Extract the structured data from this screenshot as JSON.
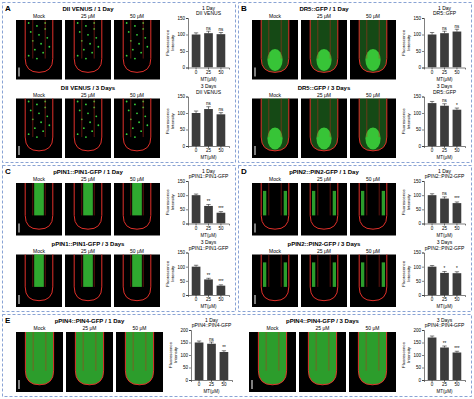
{
  "panels": [
    {
      "letter": "A",
      "rows": [
        {
          "heading": "DII VENUS / 1 Day",
          "columns": [
            "Mock",
            "25 μM",
            "50 μM"
          ]
        },
        {
          "heading": "DII VENUS / 3 Days",
          "columns": [
            "Mock",
            "25 μM",
            "50 μM"
          ]
        }
      ]
    },
    {
      "letter": "B",
      "rows": [
        {
          "heading": "DR5::GFP / 1 Day",
          "columns": [
            "Mock",
            "25 μM",
            "50 μM"
          ]
        },
        {
          "heading": "DR5::GFP / 3 Days",
          "columns": [
            "Mock",
            "25 μM",
            "50 μM"
          ]
        }
      ]
    },
    {
      "letter": "C",
      "rows": [
        {
          "heading": "pPIN1::PIN1-GFP / 1 Day",
          "columns": [
            "Mock",
            "25 μM",
            "50 μM"
          ]
        },
        {
          "heading": "pPIN1::PIN1-GFP / 3 Days",
          "columns": [
            "Mock",
            "25 μM",
            "50 μM"
          ]
        }
      ]
    },
    {
      "letter": "D",
      "rows": [
        {
          "heading": "pPIN2::PIN2-GFP / 1 Day",
          "columns": [
            "Mock",
            "25 μM",
            "50 μM"
          ]
        },
        {
          "heading": "pPIN2::PIN2-GFP / 3 Days",
          "columns": [
            "Mock",
            "25 μM",
            "50 μM"
          ]
        }
      ]
    },
    {
      "letter": "E",
      "rows": [
        {
          "heading": "pPIN4::PIN4-GFP / 1 Day",
          "columns": [
            "Mock",
            "25 μM",
            "50 μM"
          ]
        },
        {
          "heading": "pPIN4::PIN4-GFP / 3 Days",
          "columns": [
            "Mock",
            "25 μM",
            "50 μM"
          ]
        }
      ]
    }
  ],
  "chart_data": [
    {
      "type": "bar",
      "title": "1 Day",
      "subtitle": "DII VENUS",
      "xlabel": "MT(μM)",
      "ylabel": "Fluorescence Intensity",
      "categories": [
        "0",
        "25",
        "50"
      ],
      "values": [
        100,
        104,
        101
      ],
      "errors": [
        5,
        6,
        5
      ],
      "annotations": [
        null,
        "ns",
        "ns"
      ],
      "color": "#3c3c3c",
      "ylim": [
        0,
        150
      ],
      "yticks": [
        0,
        50,
        100,
        150
      ]
    },
    {
      "type": "bar",
      "title": "3 Days",
      "subtitle": "DII VENUS",
      "xlabel": "MT(μM)",
      "ylabel": "Fluorescence Intensity",
      "categories": [
        "0",
        "25",
        "50"
      ],
      "values": [
        100,
        112,
        96
      ],
      "errors": [
        6,
        7,
        5
      ],
      "annotations": [
        null,
        "ns",
        "ns"
      ],
      "color": "#3c3c3c",
      "ylim": [
        0,
        150
      ],
      "yticks": [
        0,
        50,
        100,
        150
      ]
    },
    {
      "type": "bar",
      "title": "1 Day",
      "subtitle": "DR5::GFP",
      "xlabel": "MT(μM)",
      "ylabel": "Fluorescence Intensity",
      "categories": [
        "0",
        "25",
        "50"
      ],
      "values": [
        100,
        104,
        109
      ],
      "errors": [
        6,
        6,
        7
      ],
      "annotations": [
        null,
        "ns",
        "ns"
      ],
      "color": "#3c3c3c",
      "ylim": [
        0,
        150
      ],
      "yticks": [
        0,
        50,
        100,
        150
      ]
    },
    {
      "type": "bar",
      "title": "3 Days",
      "subtitle": "DR5::GFP",
      "xlabel": "MT(μM)",
      "ylabel": "Fluorescence Intensity",
      "categories": [
        "0",
        "25",
        "50"
      ],
      "values": [
        130,
        122,
        110
      ],
      "errors": [
        5,
        6,
        5
      ],
      "annotations": [
        null,
        "ns",
        "*"
      ],
      "color": "#3c3c3c",
      "ylim": [
        0,
        150
      ],
      "yticks": [
        0,
        50,
        100,
        150
      ]
    },
    {
      "type": "bar",
      "title": "1 Day",
      "subtitle": "pPIN1::PIN1-GFP",
      "xlabel": "MT(μM)",
      "ylabel": "Fluorescence Intensity",
      "categories": [
        "0",
        "25",
        "50"
      ],
      "values": [
        100,
        62,
        38
      ],
      "errors": [
        4,
        5,
        4
      ],
      "annotations": [
        null,
        "**",
        "***"
      ],
      "color": "#3c3c3c",
      "ylim": [
        0,
        150
      ],
      "yticks": [
        0,
        50,
        100,
        150
      ]
    },
    {
      "type": "bar",
      "title": "3 Days",
      "subtitle": "pPIN1::PIN1-GFP",
      "xlabel": "MT(μM)",
      "ylabel": "Fluorescence Intensity",
      "categories": [
        "0",
        "25",
        "50"
      ],
      "values": [
        100,
        55,
        33
      ],
      "errors": [
        5,
        4,
        3
      ],
      "annotations": [
        null,
        "**",
        "***"
      ],
      "color": "#3c3c3c",
      "ylim": [
        0,
        150
      ],
      "yticks": [
        0,
        50,
        100,
        150
      ]
    },
    {
      "type": "bar",
      "title": "1 Day",
      "subtitle": "pPIN2::PIN2-GFP",
      "xlabel": "MT(μM)",
      "ylabel": "Fluorescence Intensity",
      "categories": [
        "0",
        "25",
        "50"
      ],
      "values": [
        100,
        88,
        72
      ],
      "errors": [
        5,
        6,
        4
      ],
      "annotations": [
        null,
        "ns",
        "***"
      ],
      "color": "#3c3c3c",
      "ylim": [
        0,
        150
      ],
      "yticks": [
        0,
        50,
        100,
        150
      ]
    },
    {
      "type": "bar",
      "title": "3 Days",
      "subtitle": "pPIN2::PIN2-GFP",
      "xlabel": "MT(μM)",
      "ylabel": "Fluorescence Intensity",
      "categories": [
        "0",
        "25",
        "50"
      ],
      "values": [
        100,
        78,
        77
      ],
      "errors": [
        4,
        5,
        5
      ],
      "annotations": [
        null,
        "*",
        "*"
      ],
      "color": "#3c3c3c",
      "ylim": [
        0,
        150
      ],
      "yticks": [
        0,
        50,
        100,
        150
      ]
    },
    {
      "type": "bar",
      "title": "1 Day",
      "subtitle": "pPIN4::PIN4-GFP",
      "xlabel": "MT(μM)",
      "ylabel": "Fluorescence Intensity",
      "categories": [
        "0",
        "25",
        "50"
      ],
      "values": [
        150,
        145,
        112
      ],
      "errors": [
        6,
        7,
        5
      ],
      "annotations": [
        null,
        "ns",
        "**"
      ],
      "color": "#3c3c3c",
      "ylim": [
        0,
        200
      ],
      "yticks": [
        0,
        50,
        100,
        150,
        200
      ]
    },
    {
      "type": "bar",
      "title": "3 Days",
      "subtitle": "pPIN4::PIN4-GFP",
      "xlabel": "MT(μM)",
      "ylabel": "Fluorescence Intensity",
      "categories": [
        "0",
        "25",
        "50"
      ],
      "values": [
        170,
        130,
        110
      ],
      "errors": [
        6,
        6,
        5
      ],
      "annotations": [
        null,
        "**",
        "***"
      ],
      "color": "#3c3c3c",
      "ylim": [
        0,
        200
      ],
      "yticks": [
        0,
        50,
        100,
        150,
        200
      ]
    }
  ]
}
